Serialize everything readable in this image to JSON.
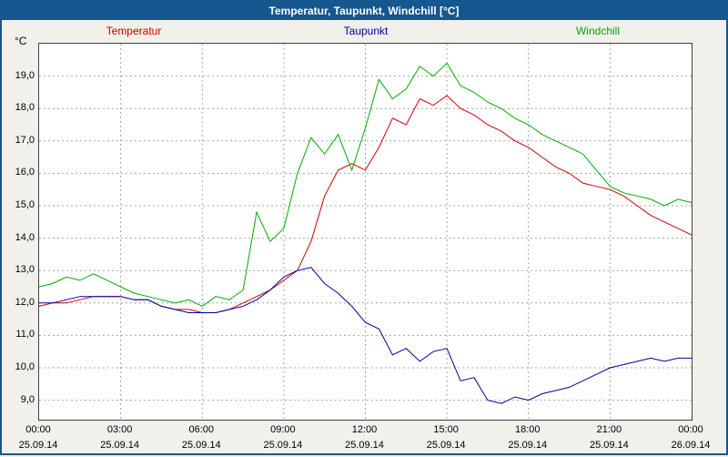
{
  "window": {
    "title": "Temperatur, Taupunkt, Windchill [°C]"
  },
  "chart_data": {
    "type": "line",
    "title": "Temperatur, Taupunkt, Windchill [°C]",
    "xlabel": "",
    "ylabel": "°C",
    "ylim": [
      8.4,
      20.0
    ],
    "grid": "dashed",
    "legend_position": "top",
    "colors": {
      "titlebar": "#15578f",
      "temperatur": "#cc0000",
      "taupunkt": "#000099",
      "windchill": "#00aa00",
      "gridline": "#a6a6a6",
      "plot_background": "#ffffff",
      "window_background": "#f1f0ea"
    },
    "yticks": [
      {
        "value": 9,
        "label": "9,0"
      },
      {
        "value": 10,
        "label": "10,0"
      },
      {
        "value": 11,
        "label": "11,0"
      },
      {
        "value": 12,
        "label": "12,0"
      },
      {
        "value": 13,
        "label": "13,0"
      },
      {
        "value": 14,
        "label": "14,0"
      },
      {
        "value": 15,
        "label": "15,0"
      },
      {
        "value": 16,
        "label": "16,0"
      },
      {
        "value": 17,
        "label": "17,0"
      },
      {
        "value": 18,
        "label": "18,0"
      },
      {
        "value": 19,
        "label": "19,0"
      }
    ],
    "xticks": [
      {
        "hour": 0,
        "time": "00:00",
        "date": "25.09.14"
      },
      {
        "hour": 3,
        "time": "03:00",
        "date": "25.09.14"
      },
      {
        "hour": 6,
        "time": "06:00",
        "date": "25.09.14"
      },
      {
        "hour": 9,
        "time": "09:00",
        "date": "25.09.14"
      },
      {
        "hour": 12,
        "time": "12:00",
        "date": "25.09.14"
      },
      {
        "hour": 15,
        "time": "15:00",
        "date": "25.09.14"
      },
      {
        "hour": 18,
        "time": "18:00",
        "date": "25.09.14"
      },
      {
        "hour": 21,
        "time": "21:00",
        "date": "25.09.14"
      },
      {
        "hour": 24,
        "time": "00:00",
        "date": "26.09.14"
      }
    ],
    "x_start_hour": 0,
    "x_step_hours": 0.5,
    "series": [
      {
        "name": "Temperatur",
        "color": "#cc0000",
        "values": [
          11.9,
          12.0,
          12.0,
          12.1,
          12.2,
          12.2,
          12.2,
          12.1,
          12.1,
          11.9,
          11.8,
          11.8,
          11.7,
          11.7,
          11.8,
          12.0,
          12.2,
          12.4,
          12.7,
          13.0,
          13.9,
          15.3,
          16.1,
          16.3,
          16.1,
          16.8,
          17.7,
          17.5,
          18.3,
          18.1,
          18.4,
          18.0,
          17.8,
          17.5,
          17.3,
          17.0,
          16.8,
          16.5,
          16.2,
          16.0,
          15.7,
          15.6,
          15.5,
          15.3,
          15.0,
          14.7,
          14.5,
          14.3,
          14.1
        ]
      },
      {
        "name": "Taupunkt",
        "color": "#000099",
        "values": [
          12.0,
          12.0,
          12.1,
          12.2,
          12.2,
          12.2,
          12.2,
          12.1,
          12.1,
          11.9,
          11.8,
          11.7,
          11.7,
          11.7,
          11.8,
          11.9,
          12.1,
          12.4,
          12.8,
          13.0,
          13.1,
          12.6,
          12.3,
          11.9,
          11.4,
          11.2,
          10.4,
          10.6,
          10.2,
          10.5,
          10.6,
          9.6,
          9.7,
          9.0,
          8.9,
          9.1,
          9.0,
          9.2,
          9.3,
          9.4,
          9.6,
          9.8,
          10.0,
          10.1,
          10.2,
          10.3,
          10.2,
          10.3,
          10.3
        ]
      },
      {
        "name": "Windchill",
        "color": "#00aa00",
        "values": [
          12.5,
          12.6,
          12.8,
          12.7,
          12.9,
          12.7,
          12.5,
          12.3,
          12.2,
          12.1,
          12.0,
          12.1,
          11.9,
          12.2,
          12.1,
          12.4,
          14.8,
          13.9,
          14.3,
          16.0,
          17.1,
          16.6,
          17.2,
          16.1,
          17.4,
          18.9,
          18.3,
          18.6,
          19.3,
          19.0,
          19.4,
          18.7,
          18.5,
          18.2,
          18.0,
          17.7,
          17.5,
          17.2,
          17.0,
          16.8,
          16.6,
          16.1,
          15.6,
          15.4,
          15.3,
          15.2,
          15.0,
          15.2,
          15.1
        ]
      }
    ]
  }
}
